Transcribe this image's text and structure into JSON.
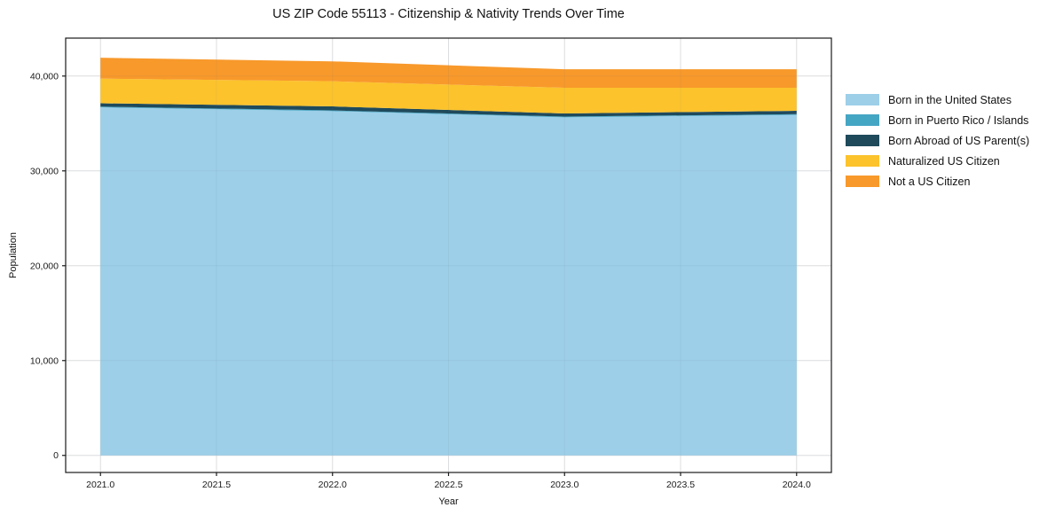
{
  "title": "US ZIP Code 55113 - Citizenship & Nativity Trends Over Time",
  "chart_data": {
    "type": "area",
    "stacked": true,
    "title": "US ZIP Code 55113 - Citizenship & Nativity Trends Over Time",
    "xlabel": "Year",
    "ylabel": "Population",
    "x": [
      2021,
      2022,
      2023,
      2024
    ],
    "series": [
      {
        "name": "Born in the United States",
        "color": "#9dcfe9",
        "values": [
          36700,
          36300,
          35650,
          35900
        ]
      },
      {
        "name": "Born in Puerto Rico / Islands",
        "color": "#45a6c4",
        "values": [
          80,
          80,
          80,
          80
        ]
      },
      {
        "name": "Born Abroad of US Parent(s)",
        "color": "#1f4a5c",
        "values": [
          350,
          420,
          330,
          350
        ]
      },
      {
        "name": "Naturalized US Citizen",
        "color": "#fcc32c",
        "values": [
          2600,
          2650,
          2700,
          2430
        ]
      },
      {
        "name": "Not a US Citizen",
        "color": "#f8992b",
        "values": [
          2200,
          2100,
          1960,
          1960
        ]
      }
    ],
    "stack_totals": [
      41930,
      41550,
      40720,
      40720
    ],
    "xlim": [
      2020.85,
      2024.15
    ],
    "ylim": [
      -1800,
      44000
    ],
    "x_tick_values": [
      2021.0,
      2021.5,
      2022.0,
      2022.5,
      2023.0,
      2023.5,
      2024.0
    ],
    "x_tick_labels": [
      "2021.0",
      "2021.5",
      "2022.0",
      "2022.5",
      "2023.0",
      "2023.5",
      "2024.0"
    ],
    "y_tick_values": [
      0,
      10000,
      20000,
      30000,
      40000
    ],
    "y_tick_labels": [
      "0",
      "10,000",
      "20,000",
      "30,000",
      "40,000"
    ],
    "grid": true,
    "grid_color": "#e8e8e8",
    "spine_color": "#1a1a1a",
    "legend_position": "right"
  }
}
